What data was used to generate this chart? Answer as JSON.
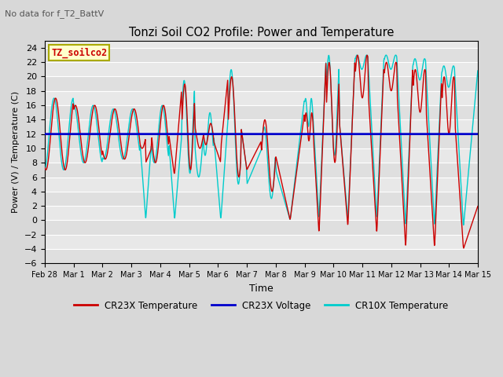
{
  "title": "Tonzi Soil CO2 Profile: Power and Temperature",
  "subtitle": "No data for f_T2_BattV",
  "xlabel": "Time",
  "ylabel": "Power (V) / Temperature (C)",
  "ylim": [
    -6,
    25
  ],
  "yticks": [
    -6,
    -4,
    -2,
    0,
    2,
    4,
    6,
    8,
    10,
    12,
    14,
    16,
    18,
    20,
    22,
    24
  ],
  "legend_label_box": "TZ_soilco2",
  "legend_entries": [
    "CR23X Temperature",
    "CR23X Voltage",
    "CR10X Temperature"
  ],
  "legend_colors": [
    "#cc0000",
    "#0000cc",
    "#00cccc"
  ],
  "bg_color": "#d8d8d8",
  "plot_bg_color": "#e8e8e8",
  "grid_color": "#ffffff",
  "cr23x_voltage_value": 12.0,
  "x_tick_labels": [
    "Feb 28",
    "Mar 1",
    "Mar 2",
    "Mar 3",
    "Mar 4",
    "Mar 5",
    "Mar 6",
    "Mar 7",
    "Mar 8",
    "Mar 9",
    "Mar 10",
    "Mar 11",
    "Mar 12",
    "Mar 13",
    "Mar 14",
    "Mar 15"
  ]
}
